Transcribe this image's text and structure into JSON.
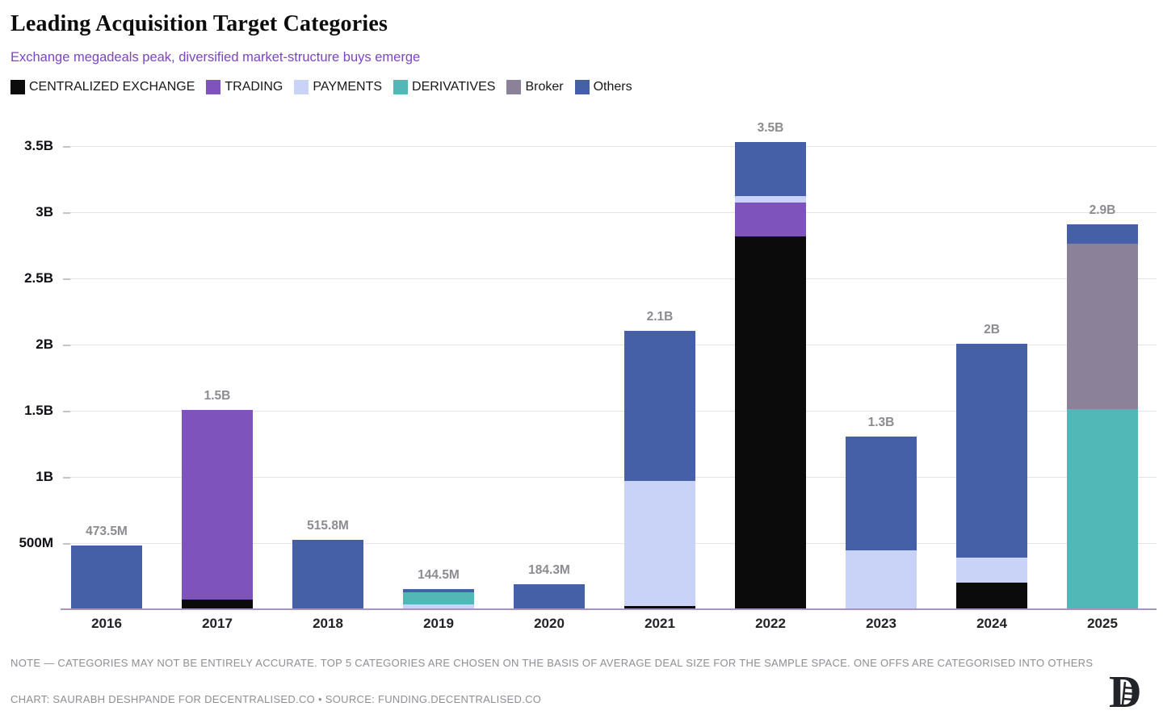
{
  "header": {
    "title": "Leading Acquisition Target Categories",
    "subtitle": "Exchange megadeals peak, diversified market-structure buys emerge"
  },
  "legend": {
    "items": [
      {
        "label": "CENTRALIZED EXCHANGE",
        "color": "#0b0b0c"
      },
      {
        "label": "TRADING",
        "color": "#7e54bc"
      },
      {
        "label": "PAYMENTS",
        "color": "#c9d3f7"
      },
      {
        "label": "DERIVATIVES",
        "color": "#52b7b7"
      },
      {
        "label": "Broker",
        "color": "#8b8198"
      },
      {
        "label": "Others",
        "color": "#4660a8"
      }
    ]
  },
  "chart_data": {
    "type": "bar",
    "stacked": true,
    "unit": "USD, millions (M) / billions (B)",
    "title": "Leading Acquisition Target Categories",
    "xlabel": "",
    "ylabel": "",
    "categories": [
      "2016",
      "2017",
      "2018",
      "2019",
      "2020",
      "2021",
      "2022",
      "2023",
      "2024",
      "2025"
    ],
    "series": [
      {
        "name": "CENTRALIZED EXCHANGE",
        "color": "#0b0b0c",
        "values": [
          0,
          70,
          0,
          0,
          0,
          20,
          2810,
          0,
          195,
          0
        ]
      },
      {
        "name": "TRADING",
        "color": "#7e54bc",
        "values": [
          0,
          1430,
          0,
          0,
          0,
          0,
          255,
          0,
          0,
          0
        ]
      },
      {
        "name": "PAYMENTS",
        "color": "#c9d3f7",
        "values": [
          0,
          0,
          0,
          28,
          0,
          945,
          50,
          440,
          190,
          0
        ]
      },
      {
        "name": "DERIVATIVES",
        "color": "#52b7b7",
        "values": [
          0,
          0,
          0,
          92,
          0,
          0,
          0,
          0,
          0,
          1505
        ]
      },
      {
        "name": "Broker",
        "color": "#8b8198",
        "values": [
          0,
          0,
          0,
          0,
          0,
          0,
          0,
          0,
          0,
          1250
        ]
      },
      {
        "name": "Others",
        "color": "#4660a8",
        "values": [
          473.5,
          0,
          515.8,
          24.5,
          184.3,
          1135,
          410,
          860,
          1615,
          145
        ]
      }
    ],
    "totals": [
      473.5,
      1500,
      515.8,
      144.5,
      184.3,
      2100,
      3525,
      1300,
      2000,
      2900
    ],
    "total_labels": [
      "473.5M",
      "1.5B",
      "515.8M",
      "144.5M",
      "184.3M",
      "2.1B",
      "3.5B",
      "1.3B",
      "2B",
      "2.9B"
    ],
    "y_ticks": [
      {
        "label": "500M",
        "value": 500
      },
      {
        "label": "1B",
        "value": 1000
      },
      {
        "label": "1.5B",
        "value": 1500
      },
      {
        "label": "2B",
        "value": 2000
      },
      {
        "label": "2.5B",
        "value": 2500
      },
      {
        "label": "3B",
        "value": 3000
      },
      {
        "label": "3.5B",
        "value": 3500
      }
    ],
    "ylim": [
      0,
      3600
    ],
    "grid": "horizontal",
    "legend_position": "top",
    "colors": {
      "axis": "#ab90c2",
      "grid": "#e4e4e7",
      "value_label": "#8b8b90",
      "subtitle": "#7d44c3"
    }
  },
  "footer": {
    "note": "NOTE — CATEGORIES MAY NOT BE ENTIRELY ACCURATE. TOP 5 CATEGORIES ARE CHOSEN ON THE BASIS OF AVERAGE DEAL SIZE FOR THE SAMPLE SPACE. ONE OFFS ARE CATEGORISED INTO OTHERS",
    "credit": "CHART: SAURABH DESHPANDE FOR DECENTRALISED.CO • SOURCE: FUNDING.DECENTRALISED.CO",
    "logo_name": "decentralised-logo"
  }
}
